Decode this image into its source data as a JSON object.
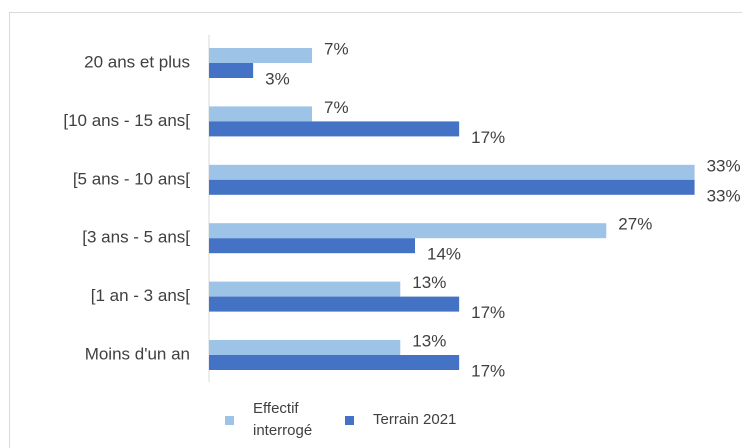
{
  "chart_data": {
    "type": "hbar",
    "categories": [
      "20 ans et plus",
      "[10 ans - 15 ans[",
      "[5 ans - 10 ans[",
      "[3 ans - 5 ans[",
      "[1 an - 3 ans[",
      "Moins d'un an"
    ],
    "series": [
      {
        "name": "Effectif interrogé",
        "color": "#9dc3e6",
        "values": [
          7,
          7,
          33,
          27,
          13,
          13
        ],
        "value_labels": [
          "7%",
          "7%",
          "33%",
          "27%",
          "13%",
          "13%"
        ]
      },
      {
        "name": "Terrain 2021",
        "color": "#4472c4",
        "values": [
          3,
          17,
          33,
          14,
          17,
          17
        ],
        "value_labels": [
          "3%",
          "17%",
          "33%",
          "14%",
          "17%",
          "17%"
        ]
      }
    ],
    "xlim": [
      0,
      35
    ],
    "legend": "bottom"
  }
}
